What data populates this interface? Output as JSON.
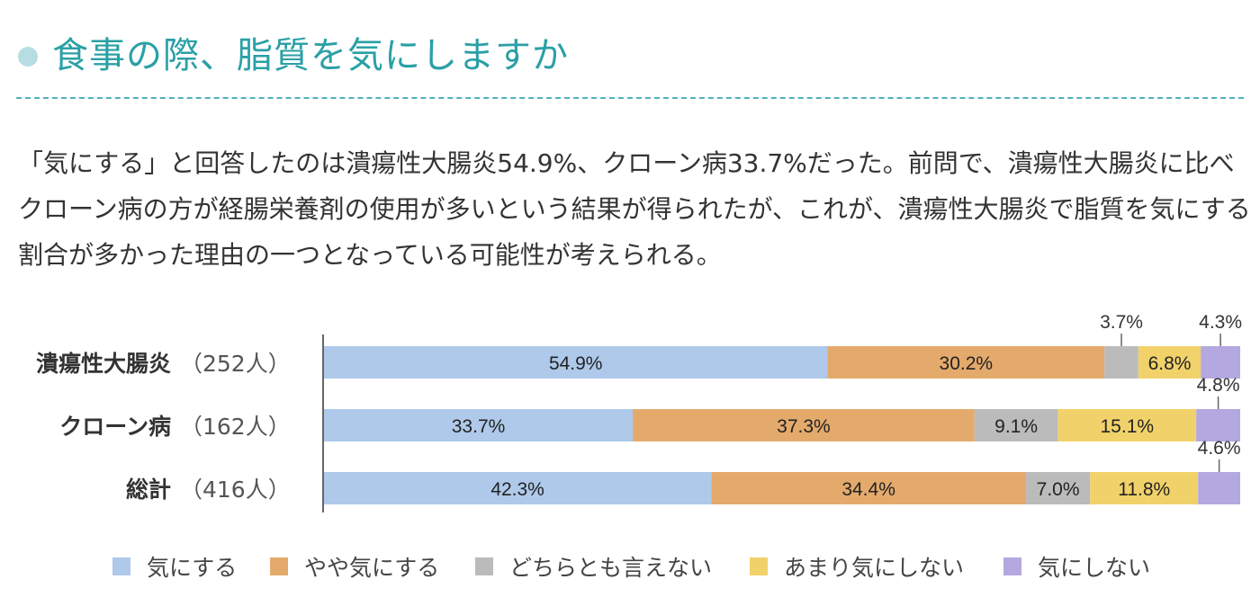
{
  "title": "食事の際、脂質を気にしますか",
  "description": "「気にする」と回答したのは潰瘍性大腸炎54.9%、クローン病33.7%だった。前問で、潰瘍性大腸炎に比べクローン病の方が経腸栄養剤の使用が多いという結果が得られたが、これが、潰瘍性大腸炎で脂質を気にする割合が多かった理由の一つとなっている可能性が考えられる。",
  "colors": {
    "accent": "#2aa0a6",
    "title_dot": "#b7dde2",
    "rule": "#4fb3b8"
  },
  "chart_data": {
    "type": "bar",
    "orientation": "horizontal",
    "stacked": true,
    "normalized_percent": true,
    "categories": [
      {
        "name": "潰瘍性大腸炎",
        "n": "（252人）"
      },
      {
        "name": "クローン病",
        "n": "（162人）"
      },
      {
        "name": "総計",
        "n": "（416人）"
      }
    ],
    "series": [
      {
        "name": "気にする",
        "color": "#aec9ea",
        "values": [
          54.9,
          33.7,
          42.3
        ],
        "labels": [
          "54.9%",
          "33.7%",
          "42.3%"
        ]
      },
      {
        "name": "やや気にする",
        "color": "#e4aa6c",
        "values": [
          30.2,
          37.3,
          34.4
        ],
        "labels": [
          "30.2%",
          "37.3%",
          "34.4%"
        ]
      },
      {
        "name": "どちらとも言えない",
        "color": "#bbbbbb",
        "values": [
          3.7,
          9.1,
          7.0
        ],
        "labels": [
          "3.7%",
          "9.1%",
          "7.0%"
        ]
      },
      {
        "name": "あまり気にしない",
        "color": "#f1d26a",
        "values": [
          6.8,
          15.1,
          11.8
        ],
        "labels": [
          "6.8%",
          "15.1%",
          "11.8%"
        ]
      },
      {
        "name": "気にしない",
        "color": "#b4a8e0",
        "values": [
          4.3,
          4.8,
          4.6
        ],
        "labels": [
          "4.3%",
          "4.8%",
          "4.6%"
        ]
      }
    ],
    "outside_labels": [
      {
        "row": 0,
        "series": 2
      },
      {
        "row": 0,
        "series": 4
      },
      {
        "row": 1,
        "series": 4
      },
      {
        "row": 2,
        "series": 4
      }
    ],
    "legend_position": "bottom",
    "grid": false
  }
}
